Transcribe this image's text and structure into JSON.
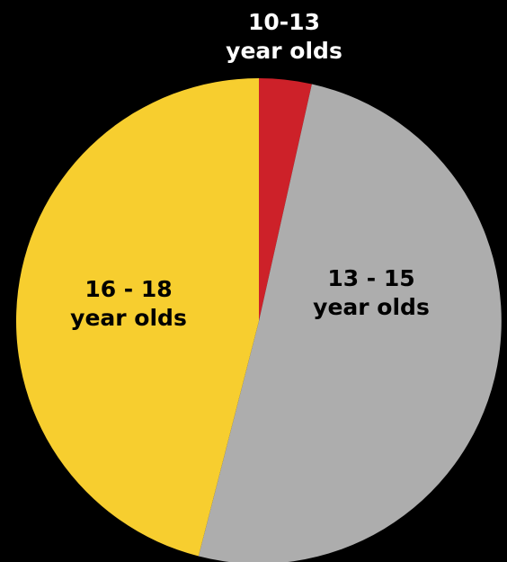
{
  "chart_data": {
    "type": "pie",
    "background": "#000000",
    "slices": [
      {
        "label_lines": [
          "10-13",
          "year olds"
        ],
        "value": 3.5,
        "unit": "percent",
        "color": "#CD2129",
        "label_color": "#FFFFFF",
        "label_placement": "outside"
      },
      {
        "label_lines": [
          "13 - 15",
          "year olds"
        ],
        "value": 50.5,
        "unit": "percent",
        "color": "#ADADAD",
        "label_color": "#000000",
        "label_placement": "inside"
      },
      {
        "label_lines": [
          "16 - 18",
          "year olds"
        ],
        "value": 46,
        "unit": "percent",
        "color": "#F7CE2F",
        "label_color": "#000000",
        "label_placement": "inside"
      }
    ],
    "start_angle_label": "top, clockwise"
  }
}
